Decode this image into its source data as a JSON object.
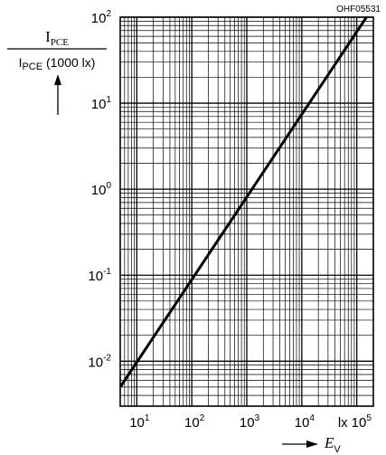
{
  "figure_code": "OHF05531",
  "chart_data": {
    "type": "line",
    "x_scale": "log",
    "y_scale": "log",
    "xlim": [
      5,
      200000
    ],
    "ylim": [
      0.003,
      100
    ],
    "grid": true,
    "x_ticks": [
      {
        "value": 10,
        "base": "10",
        "exp": "1"
      },
      {
        "value": 100,
        "base": "10",
        "exp": "2"
      },
      {
        "value": 1000,
        "base": "10",
        "exp": "3"
      },
      {
        "value": 10000,
        "base": "10",
        "exp": "4"
      },
      {
        "value": 100000,
        "base": "10",
        "exp": "5"
      }
    ],
    "x_unit": "lx",
    "y_ticks": [
      {
        "value": 0.01,
        "base": "10",
        "exp": "-2"
      },
      {
        "value": 0.1,
        "base": "10",
        "exp": "-1"
      },
      {
        "value": 1,
        "base": "10",
        "exp": "0"
      },
      {
        "value": 10,
        "base": "10",
        "exp": "1"
      },
      {
        "value": 100,
        "base": "10",
        "exp": "2"
      }
    ],
    "ylabel": {
      "numerator_main": "I",
      "numerator_sub": "PCE",
      "denominator_main": "I",
      "denominator_sub": "PCE",
      "denominator_rest": " (1000 lx)"
    },
    "xlabel": {
      "main": "E",
      "sub": "V"
    },
    "series": [
      {
        "x": [
          5,
          150000
        ],
        "y": [
          0.005,
          150
        ]
      }
    ]
  }
}
